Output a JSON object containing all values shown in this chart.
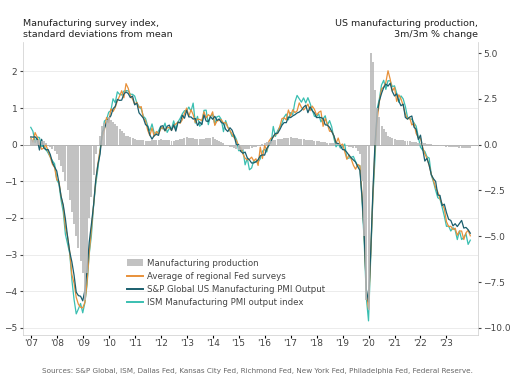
{
  "title_left": "Manufacturing survey index,\nstandard deviations from mean",
  "title_right": "US manufacturing production,\n3m/3m % change",
  "source": "Sources: S&P Global, ISM, Dallas Fed, Kansas City Fed, Richmond Fed, New York Fed, Philadelphia Fed, Federal Reserve.",
  "ylim_left": [
    -5.2,
    2.8
  ],
  "ylim_right": [
    -10.4,
    5.6
  ],
  "yticks_left": [
    -5.0,
    -4.0,
    -3.0,
    -2.0,
    -1.0,
    0.0,
    1.0,
    2.0
  ],
  "yticks_right": [
    -10.0,
    -7.5,
    -5.0,
    -2.5,
    0.0,
    2.5,
    5.0
  ],
  "xtick_labels": [
    "'07",
    "'08",
    "'09",
    "'10",
    "'11",
    "'12",
    "'13",
    "'14",
    "'15",
    "'16",
    "'17",
    "'18",
    "'19",
    "'20",
    "'21",
    "'22",
    "'23"
  ],
  "colors": {
    "mfg_production": "#b8b8b8",
    "fed_surveys": "#e8913a",
    "sp_global": "#1a5f6e",
    "ism": "#3abfb1"
  },
  "background_color": "#ffffff",
  "grid_color": "#dddddd",
  "legend_labels": [
    "Manufacturing production",
    "Average of regional Fed surveys",
    "S&P Global US Manufacturing PMI Output",
    "ISM Manufacturing PMI output index"
  ]
}
